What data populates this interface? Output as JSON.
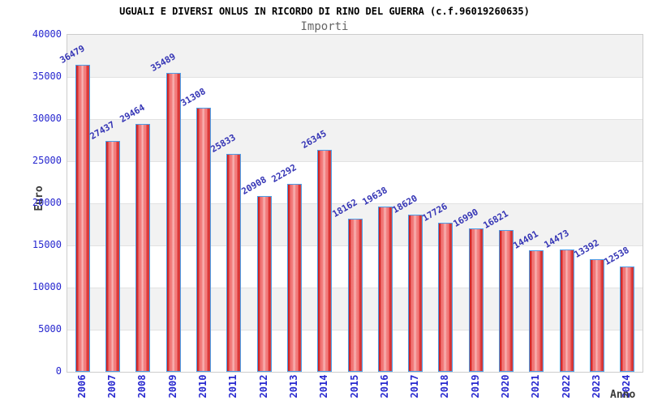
{
  "chart_data": {
    "type": "bar",
    "title": "UGUALI E DIVERSI ONLUS IN RICORDO DI RINO DEL GUERRA (c.f.96019260635)",
    "subtitle": "Importi",
    "xlabel": "Anno",
    "ylabel": "Euro",
    "categories": [
      "2006",
      "2007",
      "2008",
      "2009",
      "2010",
      "2011",
      "2012",
      "2013",
      "2014",
      "2015",
      "2016",
      "2017",
      "2018",
      "2019",
      "2020",
      "2021",
      "2022",
      "2023",
      "2024"
    ],
    "values": [
      36479,
      27437,
      29464,
      35489,
      31308,
      25833,
      20908,
      22292,
      26345,
      18162,
      19638,
      18620,
      17726,
      16990,
      16821,
      14401,
      14473,
      13392,
      12538
    ],
    "ylim": [
      0,
      40000
    ],
    "ytick_step": 5000,
    "yticks": [
      0,
      5000,
      10000,
      15000,
      20000,
      25000,
      30000,
      35000,
      40000
    ],
    "grid": true,
    "legend": false,
    "value_labels_shown": true,
    "colors": {
      "bar_edge": "#c31414",
      "bar_mid": "#ee5a5a",
      "bar_center": "#f7aaaa",
      "bar_border": "#4d9ee8",
      "tick_text": "#2727cf",
      "value_text": "#3535b5",
      "band_gray": "#f2f2f2",
      "band_white": "#ffffff",
      "gridline": "#e2e2e2",
      "plot_border": "#cccccc",
      "title_text": "#000000",
      "subtitle_text": "#666666",
      "axis_label_text": "#3a3a3a"
    }
  }
}
